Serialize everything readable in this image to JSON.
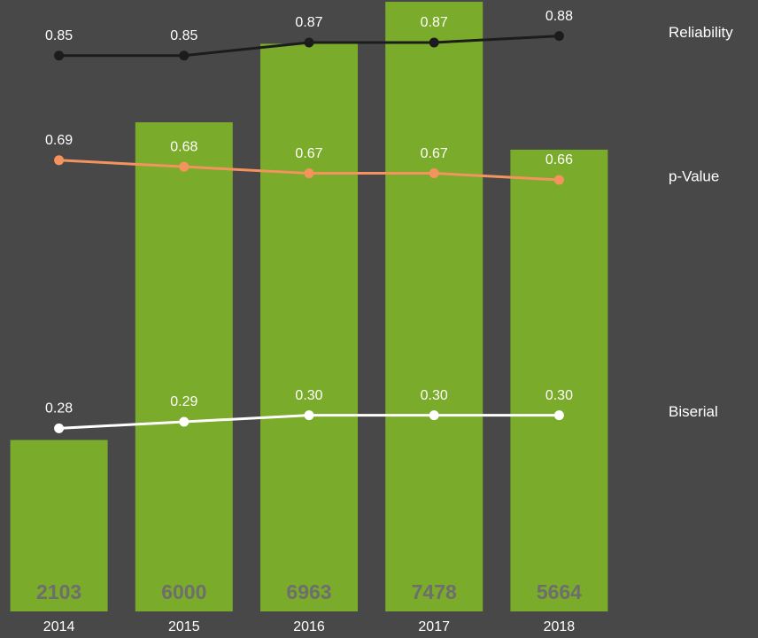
{
  "chart_data": {
    "type": "bar",
    "categories": [
      "2014",
      "2015",
      "2016",
      "2017",
      "2018"
    ],
    "values": [
      2103,
      6000,
      6963,
      7478,
      5664
    ],
    "color": "#7aab2a",
    "ylim": [
      0,
      7500
    ],
    "y2lim": [
      0,
      0.935
    ],
    "series": [
      {
        "name": "Reliability",
        "type": "line",
        "axis": "y2",
        "color": "#1c1c1c",
        "values": [
          0.85,
          0.85,
          0.87,
          0.87,
          0.88
        ]
      },
      {
        "name": "p-Value",
        "type": "line",
        "axis": "y2",
        "color": "#f4935e",
        "values": [
          0.69,
          0.68,
          0.67,
          0.67,
          0.66
        ]
      },
      {
        "name": "Biserial",
        "type": "line",
        "axis": "y2",
        "color": "#ffffff",
        "values": [
          0.28,
          0.29,
          0.3,
          0.3,
          0.3
        ],
        "value_labels": [
          "0.28",
          "0.29",
          "0.30",
          "0.30",
          "0.30"
        ]
      }
    ]
  }
}
